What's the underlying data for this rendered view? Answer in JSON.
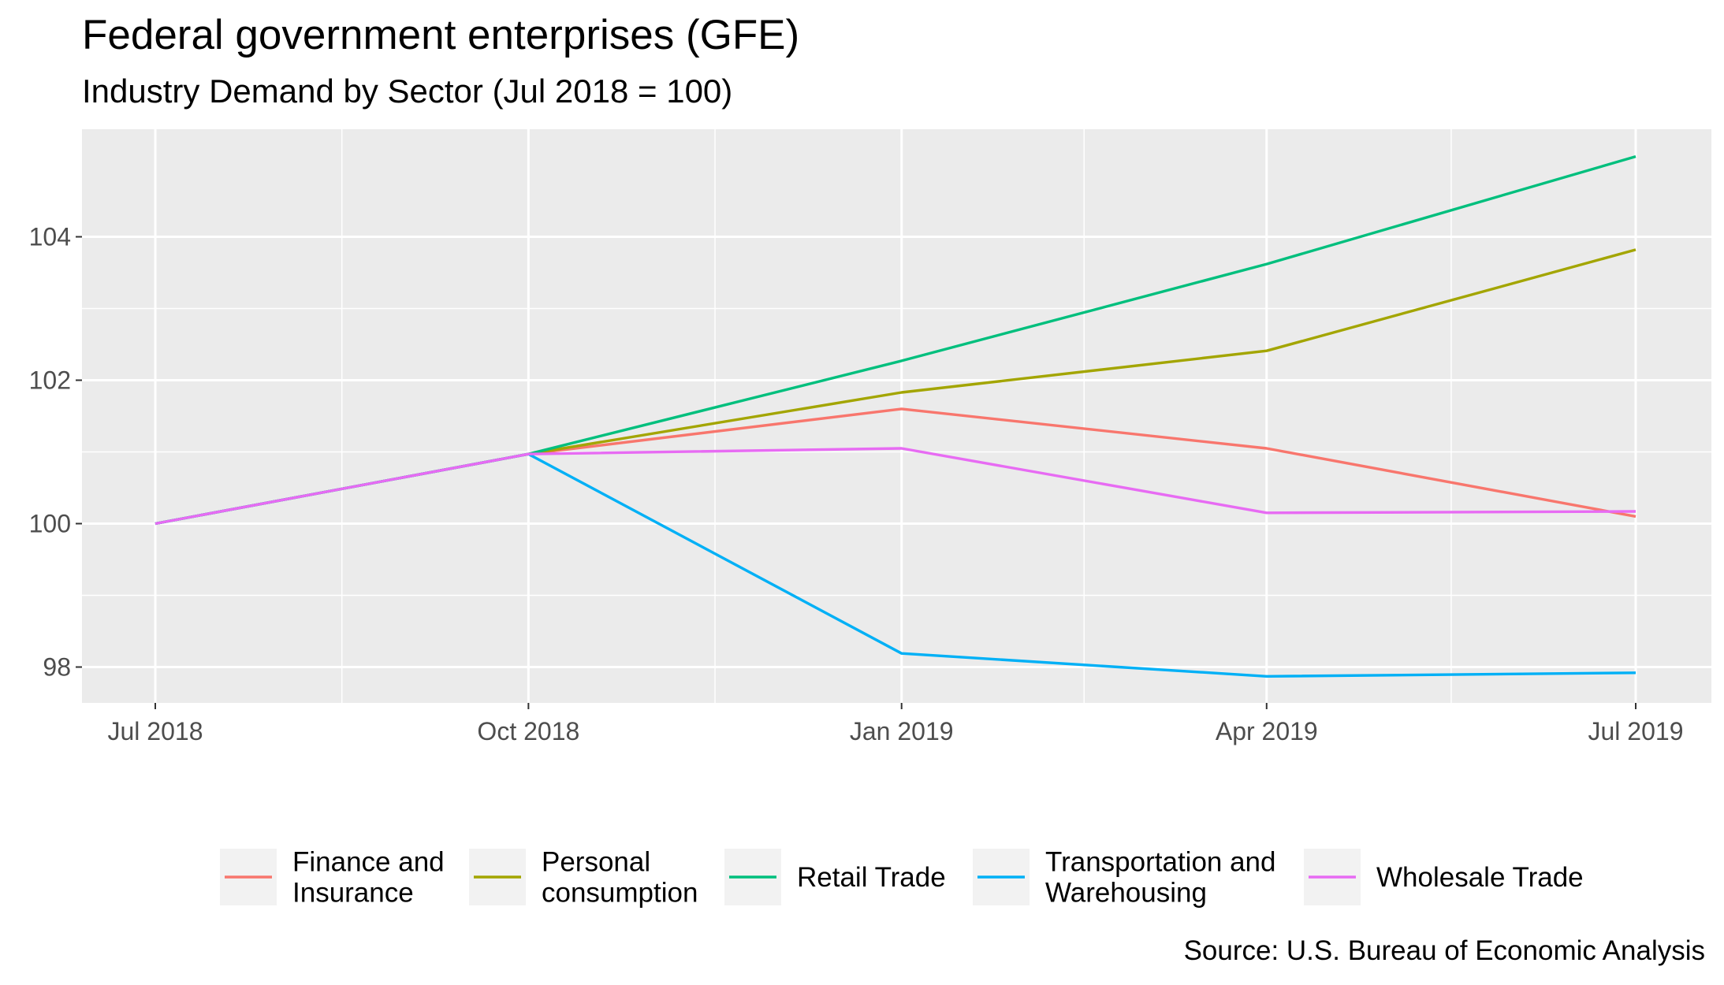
{
  "chart_data": {
    "type": "line",
    "title": "Federal government enterprises (GFE)",
    "subtitle": "Industry Demand by Sector (Jul 2018 = 100)",
    "caption": "Source: U.S. Bureau of Economic Analysis",
    "xlabel": "",
    "ylabel": "",
    "x": [
      "2018-07-01",
      "2018-10-01",
      "2019-01-01",
      "2019-04-01",
      "2019-07-01"
    ],
    "x_ticks": [
      "Jul 2018",
      "Oct 2018",
      "Jan 2019",
      "Apr 2019",
      "Jul 2019"
    ],
    "y_ticks": [
      98,
      100,
      102,
      104
    ],
    "ylim": [
      97.5,
      105.5
    ],
    "grid": true,
    "legend_position": "bottom",
    "series": [
      {
        "name": "Finance and\nInsurance",
        "color": "#F8766D",
        "values": [
          100,
          100.97,
          101.6,
          101.05,
          100.1
        ]
      },
      {
        "name": "Personal\nconsumption",
        "color": "#A3A500",
        "values": [
          100,
          100.97,
          101.83,
          102.41,
          103.82
        ]
      },
      {
        "name": "Retail Trade",
        "color": "#00BF7D",
        "values": [
          100,
          100.97,
          102.27,
          103.62,
          105.12
        ]
      },
      {
        "name": "Transportation and\nWarehousing",
        "color": "#00B0F6",
        "values": [
          100,
          100.97,
          98.19,
          97.87,
          97.92
        ]
      },
      {
        "name": "Wholesale Trade",
        "color": "#E76BF3",
        "values": [
          100,
          100.97,
          101.05,
          100.15,
          100.17
        ]
      }
    ]
  }
}
